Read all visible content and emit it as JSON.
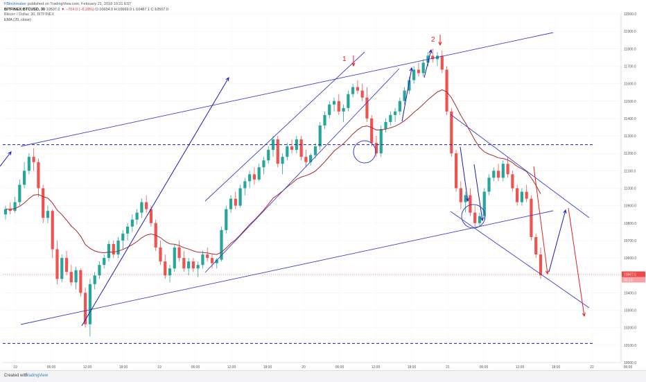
{
  "header": {
    "publisher_name": "FBlockmaker",
    "publisher_suffix": "published on TradingView.com, February 21, 2018 10:21 EST",
    "symbol": "BITFINEX:BTCUSD, 30",
    "ohlc_prefix": "10507.0",
    "ohlc_change": "▼ −704.0 (−6.28%)",
    "ohlc_suffix": "O:10634.0 H:10669.0 L:10487.1 C:10507.0",
    "title": "Bitcoin / Dollar, 30, BITFINEX",
    "indicator": "EMA (20, close)"
  },
  "footer": {
    "created_with": "Created with",
    "brand": "TradingView"
  },
  "colors": {
    "bull": "#26a69a",
    "bear": "#ef5350",
    "ema": "#a52a2a",
    "channel": "#3c3ccd",
    "annotation_blue": "#1a1ab8",
    "annotation_red": "#e02020",
    "level_line": "#1a1a9c",
    "last_price": "#f0474a"
  },
  "chart_data": {
    "type": "candlestick",
    "title": "Bitcoin / Dollar, 30, BITFINEX",
    "indicator": "EMA (20, close)",
    "ylim": [
      10000,
      12000
    ],
    "y_ticks": [
      10000,
      10100,
      10200,
      10300,
      10400,
      10500,
      10600,
      10700,
      10800,
      10900,
      11000,
      11100,
      11200,
      11300,
      11400,
      11500,
      11600,
      11700,
      11800,
      11900,
      12000
    ],
    "y_tick_labels": [
      "10000.0",
      "10100.0",
      "10200.0",
      "10300.0",
      "10400.0",
      "10500.0",
      "10600.0",
      "10700.0",
      "10800.0",
      "10900.0",
      "11000.0",
      "11100.0",
      "11200.0",
      "11300.0",
      "11400.0",
      "11500.0",
      "11600.0",
      "11700.0",
      "11800.0",
      "11900.0",
      "12000.0"
    ],
    "x_tick_labels": [
      "19",
      "06:00",
      "12:00",
      "18:00",
      "19",
      "06:00",
      "12:00",
      "18:00",
      "20",
      "06:00",
      "12:00",
      "18:00",
      "21",
      "06:00",
      "12:00",
      "18:00",
      "22",
      "06:00"
    ],
    "last_price": "10507.0",
    "last_price_secondary": "30:13",
    "horizontal_levels": [
      11250,
      10110
    ],
    "annotations": [
      "1",
      "2"
    ],
    "candles": [
      [
        10850,
        10900,
        10820,
        10880
      ],
      [
        10880,
        10920,
        10850,
        10870
      ],
      [
        10870,
        10950,
        10860,
        10920
      ],
      [
        10920,
        11050,
        10900,
        11020
      ],
      [
        11020,
        11150,
        11000,
        11100
      ],
      [
        11100,
        11200,
        11080,
        11180
      ],
      [
        11180,
        11230,
        11100,
        11150
      ],
      [
        11150,
        11170,
        10950,
        11000
      ],
      [
        11000,
        11020,
        10800,
        10830
      ],
      [
        10830,
        10900,
        10800,
        10870
      ],
      [
        10870,
        10880,
        10600,
        10650
      ],
      [
        10650,
        10700,
        10450,
        10480
      ],
      [
        10480,
        10620,
        10460,
        10600
      ],
      [
        10600,
        10640,
        10500,
        10520
      ],
      [
        10520,
        10560,
        10440,
        10460
      ],
      [
        10460,
        10550,
        10420,
        10530
      ],
      [
        10530,
        10540,
        10380,
        10400
      ],
      [
        10400,
        10430,
        10200,
        10220
      ],
      [
        10220,
        10480,
        10150,
        10450
      ],
      [
        10450,
        10520,
        10420,
        10500
      ],
      [
        10500,
        10580,
        10480,
        10560
      ],
      [
        10560,
        10620,
        10540,
        10600
      ],
      [
        10600,
        10700,
        10580,
        10680
      ],
      [
        10680,
        10700,
        10600,
        10620
      ],
      [
        10620,
        10720,
        10600,
        10700
      ],
      [
        10700,
        10760,
        10650,
        10740
      ],
      [
        10740,
        10800,
        10700,
        10780
      ],
      [
        10780,
        10850,
        10750,
        10820
      ],
      [
        10820,
        10880,
        10790,
        10860
      ],
      [
        10860,
        10940,
        10830,
        10920
      ],
      [
        10920,
        10960,
        10860,
        10880
      ],
      [
        10880,
        10900,
        10780,
        10800
      ],
      [
        10800,
        10820,
        10640,
        10660
      ],
      [
        10660,
        10700,
        10560,
        10580
      ],
      [
        10580,
        10620,
        10480,
        10500
      ],
      [
        10500,
        10560,
        10460,
        10540
      ],
      [
        10540,
        10680,
        10520,
        10660
      ],
      [
        10660,
        10700,
        10580,
        10600
      ],
      [
        10600,
        10640,
        10520,
        10540
      ],
      [
        10540,
        10600,
        10500,
        10580
      ],
      [
        10580,
        10600,
        10520,
        10540
      ],
      [
        10540,
        10580,
        10490,
        10560
      ],
      [
        10560,
        10640,
        10540,
        10620
      ],
      [
        10620,
        10660,
        10580,
        10600
      ],
      [
        10600,
        10620,
        10540,
        10570
      ],
      [
        10570,
        10600,
        10540,
        10590
      ],
      [
        10590,
        10780,
        10580,
        10760
      ],
      [
        10760,
        10900,
        10740,
        10880
      ],
      [
        10880,
        10960,
        10860,
        10940
      ],
      [
        10940,
        10980,
        10880,
        10900
      ],
      [
        10900,
        11020,
        10890,
        11000
      ],
      [
        11000,
        11060,
        10960,
        11040
      ],
      [
        11040,
        11100,
        11000,
        11080
      ],
      [
        11080,
        11120,
        11020,
        11050
      ],
      [
        11050,
        11140,
        11040,
        11120
      ],
      [
        11120,
        11180,
        11080,
        11160
      ],
      [
        11160,
        11240,
        11140,
        11220
      ],
      [
        11220,
        11300,
        11180,
        11280
      ],
      [
        11280,
        11300,
        11120,
        11140
      ],
      [
        11140,
        11200,
        11080,
        11180
      ],
      [
        11180,
        11260,
        11160,
        11240
      ],
      [
        11240,
        11280,
        11200,
        11220
      ],
      [
        11220,
        11300,
        11200,
        11280
      ],
      [
        11280,
        11300,
        11160,
        11180
      ],
      [
        11180,
        11220,
        11120,
        11150
      ],
      [
        11150,
        11200,
        11130,
        11190
      ],
      [
        11190,
        11260,
        11170,
        11240
      ],
      [
        11240,
        11380,
        11220,
        11360
      ],
      [
        11360,
        11440,
        11340,
        11420
      ],
      [
        11420,
        11500,
        11400,
        11480
      ],
      [
        11480,
        11520,
        11440,
        11500
      ],
      [
        11500,
        11540,
        11420,
        11440
      ],
      [
        11440,
        11480,
        11380,
        11460
      ],
      [
        11460,
        11560,
        11440,
        11540
      ],
      [
        11540,
        11600,
        11520,
        11580
      ],
      [
        11580,
        11620,
        11540,
        11560
      ],
      [
        11560,
        11600,
        11500,
        11520
      ],
      [
        11520,
        11580,
        11380,
        11400
      ],
      [
        11400,
        11420,
        11240,
        11260
      ],
      [
        11260,
        11300,
        11180,
        11200
      ],
      [
        11200,
        11360,
        11180,
        11340
      ],
      [
        11340,
        11400,
        11320,
        11380
      ],
      [
        11380,
        11440,
        11360,
        11420
      ],
      [
        11420,
        11460,
        11380,
        11440
      ],
      [
        11440,
        11520,
        11420,
        11500
      ],
      [
        11500,
        11580,
        11480,
        11560
      ],
      [
        11560,
        11640,
        11540,
        11620
      ],
      [
        11620,
        11700,
        11600,
        11680
      ],
      [
        11680,
        11720,
        11640,
        11660
      ],
      [
        11660,
        11740,
        11640,
        11720
      ],
      [
        11720,
        11780,
        11700,
        11760
      ],
      [
        11760,
        11800,
        11720,
        11740
      ],
      [
        11740,
        11780,
        11700,
        11760
      ],
      [
        11760,
        11790,
        11660,
        11680
      ],
      [
        11680,
        11700,
        11420,
        11440
      ],
      [
        11440,
        11460,
        11180,
        11200
      ],
      [
        11200,
        11220,
        10980,
        11000
      ],
      [
        11000,
        11040,
        10880,
        10920
      ],
      [
        10920,
        10980,
        10860,
        10960
      ],
      [
        10960,
        11000,
        10840,
        10860
      ],
      [
        10860,
        10900,
        10780,
        10800
      ],
      [
        10800,
        10860,
        10780,
        10840
      ],
      [
        10840,
        11000,
        10820,
        10980
      ],
      [
        10980,
        11080,
        10960,
        11060
      ],
      [
        11060,
        11120,
        11040,
        11100
      ],
      [
        11100,
        11140,
        11040,
        11060
      ],
      [
        11060,
        11160,
        11040,
        11140
      ],
      [
        11140,
        11180,
        11060,
        11080
      ],
      [
        11080,
        11100,
        10980,
        11000
      ],
      [
        11000,
        11020,
        10900,
        10920
      ],
      [
        10920,
        11000,
        10900,
        10980
      ],
      [
        10980,
        11020,
        10920,
        10940
      ],
      [
        10940,
        10960,
        10700,
        10720
      ],
      [
        10720,
        10740,
        10600,
        10620
      ],
      [
        10620,
        10660,
        10480,
        10500
      ]
    ]
  }
}
